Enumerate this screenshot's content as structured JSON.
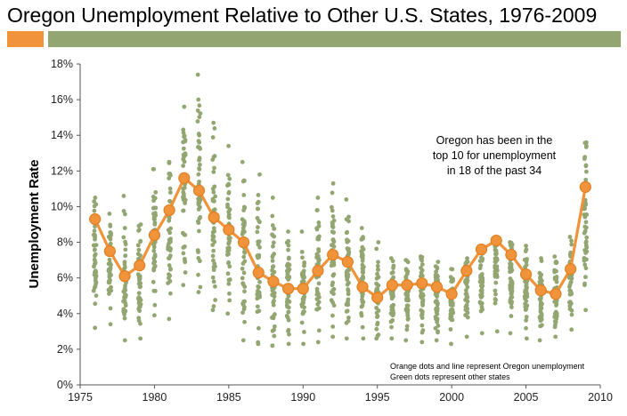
{
  "title": "Oregon Unemployment Relative to Other U.S. States, 1976-2009",
  "annotation_lines": [
    "Oregon has been in the",
    "top 10 for unemployment",
    "in 18 of the past 34"
  ],
  "note_lines": [
    "Orange dots and line represent Oregon unemployment",
    "Green dots represent other states"
  ],
  "colors": {
    "oregon": "#f0933a",
    "states": "#93a672",
    "accent_bar": "#f0933a",
    "title_bar": "#93a672"
  },
  "chart_data": {
    "type": "scatter",
    "ylabel": "Unemployment Rate",
    "xlim": [
      1975,
      2010
    ],
    "ylim": [
      0,
      18
    ],
    "x_ticks": [
      "1975",
      "1980",
      "1985",
      "1990",
      "1995",
      "2000",
      "2005",
      "2010"
    ],
    "y_ticks": [
      "0%",
      "2%",
      "4%",
      "6%",
      "8%",
      "10%",
      "12%",
      "14%",
      "16%",
      "18%"
    ],
    "series": [
      {
        "name": "Oregon",
        "style": "line+markers",
        "x": [
          1976,
          1977,
          1978,
          1979,
          1980,
          1981,
          1982,
          1983,
          1984,
          1985,
          1986,
          1987,
          1988,
          1989,
          1990,
          1991,
          1992,
          1993,
          1994,
          1995,
          1996,
          1997,
          1998,
          1999,
          2000,
          2001,
          2002,
          2003,
          2004,
          2005,
          2006,
          2007,
          2008,
          2009
        ],
        "y": [
          9.3,
          7.5,
          6.1,
          6.7,
          8.4,
          9.8,
          11.6,
          10.9,
          9.4,
          8.7,
          8.0,
          6.3,
          5.8,
          5.4,
          5.4,
          6.4,
          7.3,
          6.9,
          5.5,
          4.9,
          5.6,
          5.6,
          5.7,
          5.5,
          5.1,
          6.4,
          7.6,
          8.1,
          7.3,
          6.2,
          5.3,
          5.1,
          6.5,
          11.1
        ]
      },
      {
        "name": "Other states",
        "style": "markers",
        "min": [
          3.2,
          3.4,
          2.5,
          2.6,
          3.9,
          3.7,
          5.6,
          5.2,
          4.2,
          4.0,
          2.5,
          2.3,
          2.2,
          2.3,
          2.3,
          2.4,
          2.7,
          2.6,
          2.6,
          2.6,
          2.6,
          2.5,
          2.4,
          2.5,
          2.3,
          2.7,
          2.9,
          3.0,
          2.9,
          2.6,
          2.5,
          2.7,
          3.1,
          4.2
        ],
        "max": [
          10.5,
          9.6,
          10.6,
          9.0,
          12.1,
          12.5,
          15.6,
          17.4,
          14.7,
          13.4,
          12.5,
          11.8,
          10.5,
          8.6,
          8.6,
          10.5,
          11.3,
          10.4,
          8.8,
          8.0,
          7.1,
          7.0,
          7.2,
          6.9,
          6.5,
          7.1,
          7.6,
          8.2,
          8.0,
          7.8,
          7.1,
          7.2,
          8.3,
          13.6
        ]
      }
    ]
  }
}
